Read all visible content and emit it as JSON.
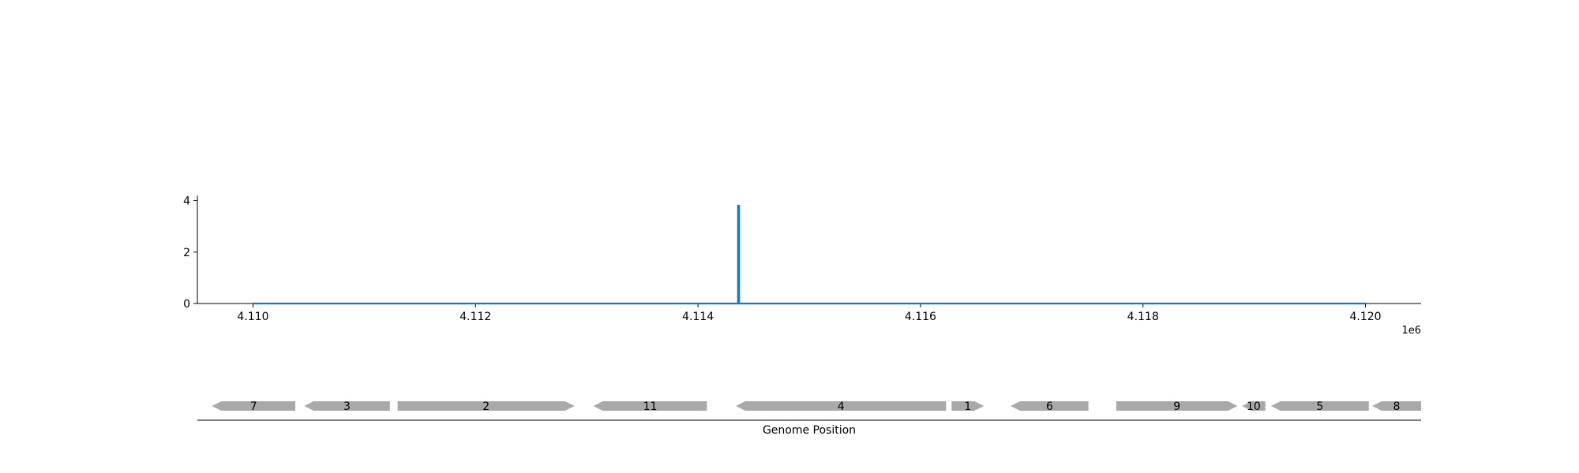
{
  "chart_data": [
    {
      "type": "line",
      "x_ticks": [
        4110000,
        4112000,
        4114000,
        4116000,
        4118000,
        4120000
      ],
      "x_tick_labels": [
        "4.110",
        "4.112",
        "4.114",
        "4.116",
        "4.118",
        "4.120"
      ],
      "x_offset_label": "1e6",
      "xlim": [
        4109500,
        4120500
      ],
      "y_ticks": [
        0,
        2,
        4
      ],
      "y_tick_labels": [
        "0",
        "2",
        "4"
      ],
      "ylim": [
        0,
        4.2
      ],
      "grid": false,
      "series": [
        {
          "color": "#1f77b4",
          "points": [
            [
              4110000,
              0
            ],
            [
              4114360,
              0
            ],
            [
              4114360,
              3.8
            ],
            [
              4114370,
              3.8
            ],
            [
              4114370,
              0
            ],
            [
              4120000,
              0
            ]
          ]
        }
      ]
    },
    {
      "type": "gene-track",
      "xlabel": "Genome Position",
      "xlim": [
        4109500,
        4120500
      ],
      "gene_color": "#a9a9a9",
      "genes": [
        {
          "label": "7",
          "start": 4109630,
          "end": 4110380,
          "strand": "-"
        },
        {
          "label": "3",
          "start": 4110460,
          "end": 4111230,
          "strand": "-"
        },
        {
          "label": "2",
          "start": 4111300,
          "end": 4112890,
          "strand": "+"
        },
        {
          "label": "11",
          "start": 4113060,
          "end": 4114080,
          "strand": "-"
        },
        {
          "label": "4",
          "start": 4114340,
          "end": 4116230,
          "strand": "-"
        },
        {
          "label": "1",
          "start": 4116280,
          "end": 4116570,
          "strand": "+"
        },
        {
          "label": "6",
          "start": 4116810,
          "end": 4117510,
          "strand": "-"
        },
        {
          "label": "9",
          "start": 4117760,
          "end": 4118850,
          "strand": "+"
        },
        {
          "label": "10",
          "start": 4118890,
          "end": 4119100,
          "strand": "-"
        },
        {
          "label": "5",
          "start": 4119150,
          "end": 4120030,
          "strand": "-"
        },
        {
          "label": "8",
          "start": 4120060,
          "end": 4120500,
          "strand": "-"
        }
      ]
    }
  ]
}
